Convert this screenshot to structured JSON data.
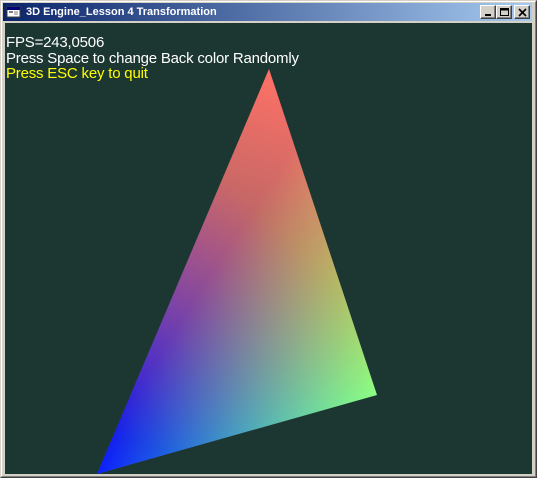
{
  "window": {
    "title": "3D Engine_Lesson 4 Transformation",
    "icon": "vb-form-icon",
    "buttons": {
      "minimize": "minimize-icon",
      "maximize": "maximize-icon",
      "close": "close-icon"
    }
  },
  "viewport": {
    "background_color": "#1c3732",
    "hud": {
      "fps_text": "FPS=243,0506",
      "hint_space": "Press Space to change Back color Randomly",
      "hint_esc": "Press ESC key to quit",
      "fps_color": "#ffffff",
      "hint_space_color": "#ffffff",
      "hint_esc_color": "#ffff00"
    },
    "triangle": {
      "vertex_colors": [
        "#ff2a00",
        "#1aff00",
        "#0a10ff"
      ]
    }
  }
}
